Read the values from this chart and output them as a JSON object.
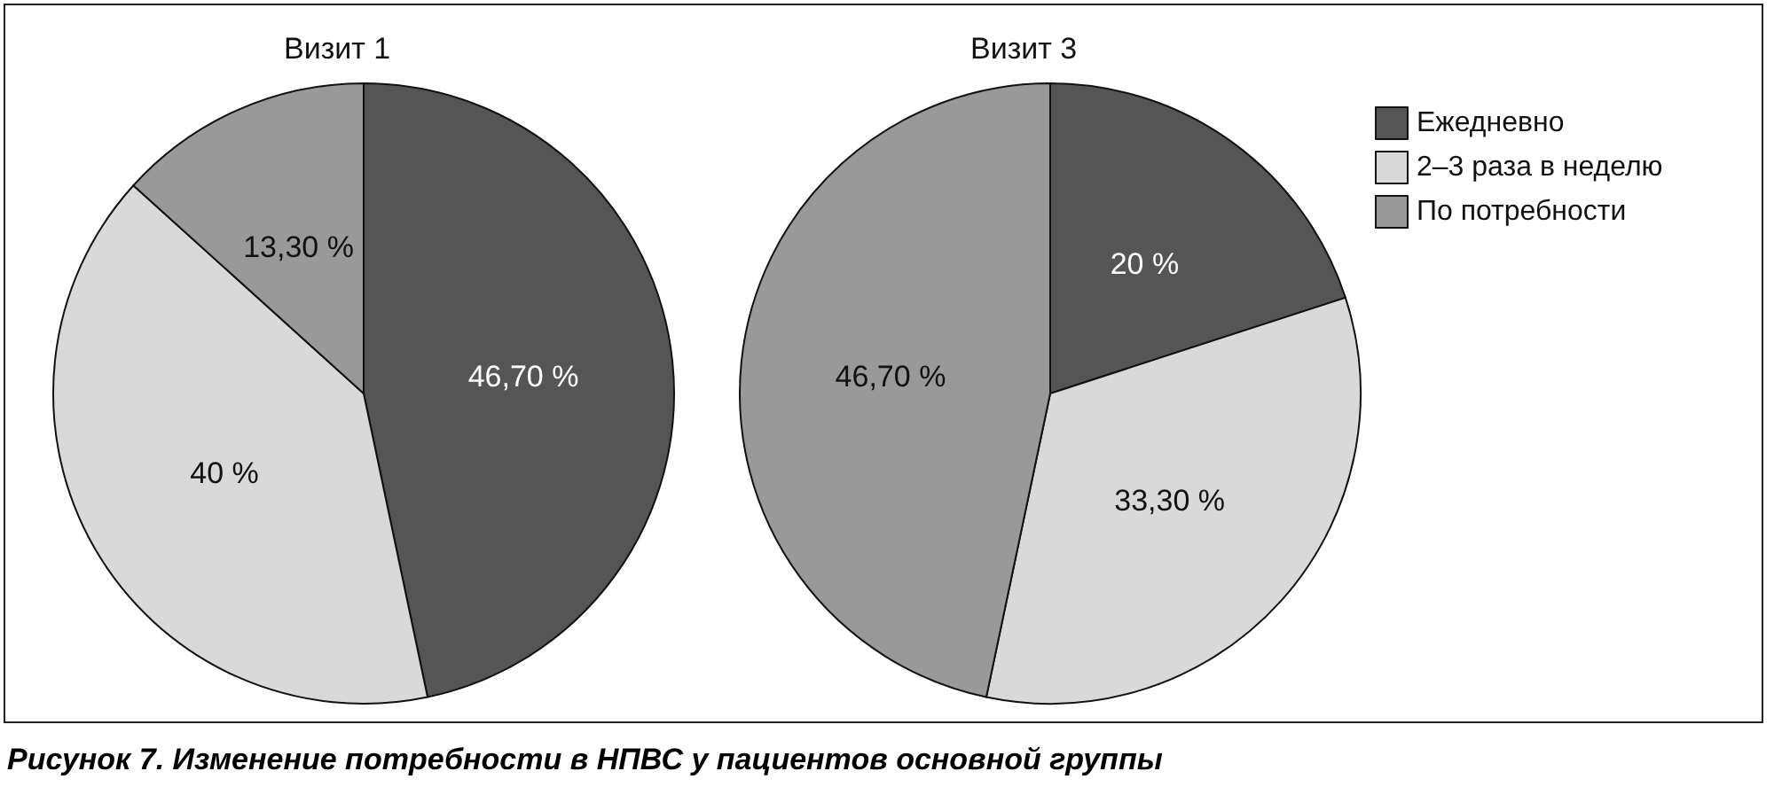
{
  "chart_data": [
    {
      "type": "pie",
      "title": "Визит 1",
      "categories": [
        null,
        null,
        null
      ],
      "values": [
        46.7,
        40,
        13.3
      ],
      "value_labels": [
        "46,70 %",
        "40 %",
        "13,30 %"
      ],
      "colors": [
        "#555555",
        "#d9d9d9",
        "#999999"
      ],
      "legend": false,
      "annotations": [
        "Рисунок 7. Изменение потребности в НПВС у пациентов основной группы"
      ]
    },
    {
      "type": "pie",
      "title": "Визит 3",
      "categories": [
        "Ежедневно",
        "2–3 раза в неделю",
        "По потребности"
      ],
      "values": [
        20,
        33.3,
        46.7
      ],
      "value_labels": [
        "20 %",
        "33,30 %",
        "46,70 %"
      ],
      "colors": [
        "#555555",
        "#d9d9d9",
        "#999999"
      ],
      "legend": "right"
    }
  ]
}
